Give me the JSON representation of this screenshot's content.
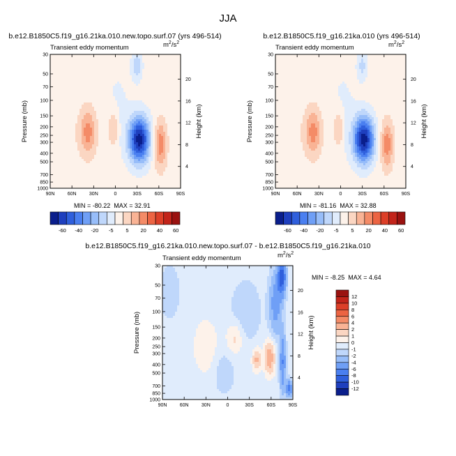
{
  "figure": {
    "title": "JJA"
  },
  "chart_data": [
    {
      "type": "heatmap",
      "title": "b.e12.B1850C5.f19_g16.21ka.010.new.topo.surf.07 (yrs 496-514)",
      "subtitle": "Transient eddy momentum",
      "units_base": "m",
      "units_exp": "2",
      "units_den": "/s",
      "units_den_exp": "2",
      "xlabel": "",
      "ylabel": "Pressure (mb)",
      "ylabel_right": "Height (km)",
      "x_ticks": [
        "90N",
        "60N",
        "30N",
        "0",
        "30S",
        "60S",
        "90S"
      ],
      "x_tick_values": [
        90,
        60,
        30,
        0,
        -30,
        -60,
        -90
      ],
      "y_ticks": [
        "30",
        "50",
        "70",
        "100",
        "150",
        "200",
        "250",
        "300",
        "400",
        "500",
        "700",
        "850",
        "1000"
      ],
      "y_tick_values": [
        30,
        50,
        70,
        100,
        150,
        200,
        250,
        300,
        400,
        500,
        700,
        850,
        1000
      ],
      "y_right_ticks": [
        "20",
        "16",
        "12",
        "8",
        "4"
      ],
      "y_right_values": [
        20,
        16,
        12,
        8,
        4
      ],
      "min_text": "MIN = -80.22",
      "max_text": "MAX = 32.91",
      "min": -80.22,
      "max": 32.91,
      "features": [
        {
          "lat": -33,
          "p": 280,
          "amp": -80,
          "slat": 10,
          "slog": 0.42
        },
        {
          "lat": -30,
          "p": 40,
          "amp": -22,
          "slat": 5,
          "slog": 0.28
        },
        {
          "lat": -3,
          "p": 130,
          "amp": -7,
          "slat": 14,
          "slog": 0.9
        },
        {
          "lat": 38,
          "p": 230,
          "amp": 30,
          "slat": 8,
          "slog": 0.42
        },
        {
          "lat": 3,
          "p": 210,
          "amp": 20,
          "slat": 5,
          "slog": 0.35
        },
        {
          "lat": -62,
          "p": 320,
          "amp": 32,
          "slat": 6,
          "slog": 0.42
        },
        {
          "lat": 70,
          "p": 280,
          "amp": 4,
          "slat": 12,
          "slog": 0.6
        },
        {
          "lat": 82,
          "p": 200,
          "amp": -3,
          "slat": 6,
          "slog": 0.8
        }
      ]
    },
    {
      "type": "heatmap",
      "title": "b.e12.B1850C5.f19_g16.21ka.010 (yrs 496-514)",
      "subtitle": "Transient eddy momentum",
      "units_base": "m",
      "units_exp": "2",
      "units_den": "/s",
      "units_den_exp": "2",
      "xlabel": "",
      "ylabel": "Pressure (mb)",
      "ylabel_right": "Height (km)",
      "x_ticks": [
        "90N",
        "60N",
        "30N",
        "0",
        "30S",
        "60S",
        "90S"
      ],
      "x_tick_values": [
        90,
        60,
        30,
        0,
        -30,
        -60,
        -90
      ],
      "y_ticks": [
        "30",
        "50",
        "70",
        "100",
        "150",
        "200",
        "250",
        "300",
        "400",
        "500",
        "700",
        "850",
        "1000"
      ],
      "y_tick_values": [
        30,
        50,
        70,
        100,
        150,
        200,
        250,
        300,
        400,
        500,
        700,
        850,
        1000
      ],
      "y_right_ticks": [
        "20",
        "16",
        "12",
        "8",
        "4"
      ],
      "y_right_values": [
        20,
        16,
        12,
        8,
        4
      ],
      "min_text": "MIN = -81.16",
      "max_text": "MAX = 32.88",
      "min": -81.16,
      "max": 32.88,
      "features": [
        {
          "lat": -32,
          "p": 280,
          "amp": -81,
          "slat": 10,
          "slog": 0.42
        },
        {
          "lat": -30,
          "p": 40,
          "amp": -18,
          "slat": 5,
          "slog": 0.28
        },
        {
          "lat": -3,
          "p": 130,
          "amp": -7,
          "slat": 14,
          "slog": 0.9
        },
        {
          "lat": 38,
          "p": 230,
          "amp": 30,
          "slat": 8,
          "slog": 0.42
        },
        {
          "lat": 3,
          "p": 210,
          "amp": 20,
          "slat": 5,
          "slog": 0.35
        },
        {
          "lat": -64,
          "p": 320,
          "amp": 32,
          "slat": 6,
          "slog": 0.42
        },
        {
          "lat": 70,
          "p": 280,
          "amp": 4,
          "slat": 12,
          "slog": 0.6
        },
        {
          "lat": 82,
          "p": 200,
          "amp": -3,
          "slat": 6,
          "slog": 0.8
        }
      ]
    },
    {
      "type": "heatmap",
      "title": "b.e12.B1850C5.f19_g16.21ka.010.new.topo.surf.07 - b.e12.B1850C5.f19_g16.21ka.010",
      "subtitle": "Transient eddy momentum",
      "units_base": "m",
      "units_exp": "2",
      "units_den": "/s",
      "units_den_exp": "2",
      "xlabel": "",
      "ylabel": "Pressure (mb)",
      "ylabel_right": "Height (km)",
      "x_ticks": [
        "90N",
        "60N",
        "30N",
        "0",
        "30S",
        "60S",
        "90S"
      ],
      "x_tick_values": [
        90,
        60,
        30,
        0,
        -30,
        -60,
        -90
      ],
      "y_ticks": [
        "30",
        "50",
        "70",
        "100",
        "150",
        "200",
        "250",
        "300",
        "400",
        "500",
        "700",
        "850",
        "1000"
      ],
      "y_tick_values": [
        30,
        50,
        70,
        100,
        150,
        200,
        250,
        300,
        400,
        500,
        700,
        850,
        1000
      ],
      "y_right_ticks": [
        "20",
        "16",
        "12",
        "8",
        "4"
      ],
      "y_right_values": [
        20,
        16,
        12,
        8,
        4
      ],
      "min_text": "MIN =  -8.25",
      "max_text": "MAX =   4.64",
      "min": -8.25,
      "max": 4.64,
      "features": [
        {
          "lat": -75,
          "p": 40,
          "amp": -8,
          "slat": 4,
          "slog": 0.35
        },
        {
          "lat": -66,
          "p": 80,
          "amp": -4,
          "slat": 6,
          "slog": 0.6
        },
        {
          "lat": -76,
          "p": 380,
          "amp": -5,
          "slat": 3,
          "slog": 0.55
        },
        {
          "lat": -85,
          "p": 750,
          "amp": -6,
          "slat": 3,
          "slog": 0.15
        },
        {
          "lat": -58,
          "p": 330,
          "amp": 4.5,
          "slat": 5,
          "slog": 0.3
        },
        {
          "lat": -40,
          "p": 350,
          "amp": 3.5,
          "slat": 4,
          "slog": 0.2
        },
        {
          "lat": -10,
          "p": 200,
          "amp": 2.0,
          "slat": 8,
          "slog": 0.3
        },
        {
          "lat": 30,
          "p": 250,
          "amp": 1.3,
          "slat": 12,
          "slog": 0.5
        },
        {
          "lat": -25,
          "p": 100,
          "amp": -1.3,
          "slat": 15,
          "slog": 0.6
        },
        {
          "lat": 5,
          "p": 500,
          "amp": -1.3,
          "slat": 10,
          "slog": 0.4
        },
        {
          "lat": 80,
          "p": 60,
          "amp": -1.3,
          "slat": 10,
          "slog": 0.5
        }
      ]
    }
  ],
  "colorbars": {
    "horizontal": {
      "labels": [
        "-60",
        "-40",
        "-20",
        "-5",
        "5",
        "20",
        "40",
        "60"
      ],
      "colors": [
        "#0a1e8c",
        "#1e3fbe",
        "#2f5fdc",
        "#4a7ff0",
        "#6f9ff6",
        "#97bdf9",
        "#bfd7fb",
        "#e0ecfc",
        "#fdf2ea",
        "#fbd6c2",
        "#f9b395",
        "#f48b67",
        "#ec6443",
        "#dc3f28",
        "#c2241a",
        "#9a1210"
      ]
    },
    "vertical": {
      "labels": [
        "12",
        "10",
        "8",
        "6",
        "4",
        "2",
        "1",
        "0",
        "-1",
        "-2",
        "-4",
        "-6",
        "-8",
        "-10",
        "-12"
      ],
      "colors": [
        "#9a1210",
        "#c2241a",
        "#dc3f28",
        "#ec6443",
        "#f48b67",
        "#f9b395",
        "#fbd6c2",
        "#fdf2ea",
        "#e0ecfc",
        "#bfd7fb",
        "#97bdf9",
        "#6f9ff6",
        "#4a7ff0",
        "#2f5fdc",
        "#1e3fbe",
        "#0a1e8c"
      ]
    }
  }
}
